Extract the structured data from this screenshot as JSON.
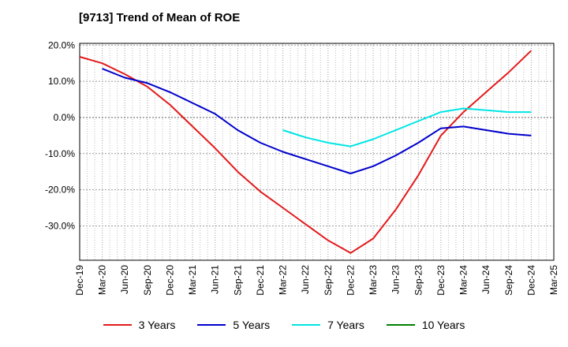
{
  "chart_data": {
    "type": "line",
    "title": "[9713]  Trend of Mean of ROE",
    "xlabel": "",
    "ylabel": "",
    "categories": [
      "Dec-19",
      "Mar-20",
      "Jun-20",
      "Sep-20",
      "Dec-20",
      "Mar-21",
      "Jun-21",
      "Sep-21",
      "Dec-21",
      "Mar-22",
      "Jun-22",
      "Sep-22",
      "Dec-22",
      "Mar-23",
      "Jun-23",
      "Sep-23",
      "Dec-23",
      "Mar-24",
      "Jun-24",
      "Sep-24",
      "Dec-24",
      "Mar-25"
    ],
    "yticks": [
      -30,
      -20,
      -10,
      0,
      10,
      20
    ],
    "ytick_labels": [
      "-30.0%",
      "-20.0%",
      "-10.0%",
      "0.0%",
      "10.0%",
      "20.0%"
    ],
    "ylim": [
      -39.5,
      20.5
    ],
    "grid": true,
    "legend_position": "bottom",
    "series": [
      {
        "name": "3 Years",
        "color": "#e31a1c",
        "values": [
          16.8,
          15.0,
          12.0,
          8.5,
          3.5,
          -2.5,
          -8.5,
          -15.0,
          -20.5,
          -25.0,
          -29.5,
          -34.0,
          -37.5,
          -33.5,
          -25.5,
          -16.0,
          -5.0,
          1.5,
          7.0,
          12.5,
          18.5,
          null
        ]
      },
      {
        "name": "5 Years",
        "color": "#0000cc",
        "values": [
          null,
          13.5,
          11.0,
          9.5,
          7.0,
          4.0,
          1.0,
          -3.5,
          -7.0,
          -9.5,
          -11.5,
          -13.5,
          -15.5,
          -13.5,
          -10.5,
          -7.0,
          -3.0,
          -2.5,
          -3.5,
          -4.5,
          -5.0,
          null
        ]
      },
      {
        "name": "7 Years",
        "color": "#00e5e5",
        "values": [
          null,
          null,
          null,
          null,
          null,
          null,
          null,
          null,
          null,
          -3.5,
          -5.5,
          -7.0,
          -8.0,
          -6.0,
          -3.5,
          -1.0,
          1.5,
          2.5,
          2.0,
          1.5,
          1.5,
          null
        ]
      },
      {
        "name": "10 Years",
        "color": "#008000",
        "values": [
          null,
          null,
          null,
          null,
          null,
          null,
          null,
          null,
          null,
          null,
          null,
          null,
          null,
          null,
          null,
          null,
          null,
          null,
          null,
          null,
          null,
          null
        ]
      }
    ]
  }
}
